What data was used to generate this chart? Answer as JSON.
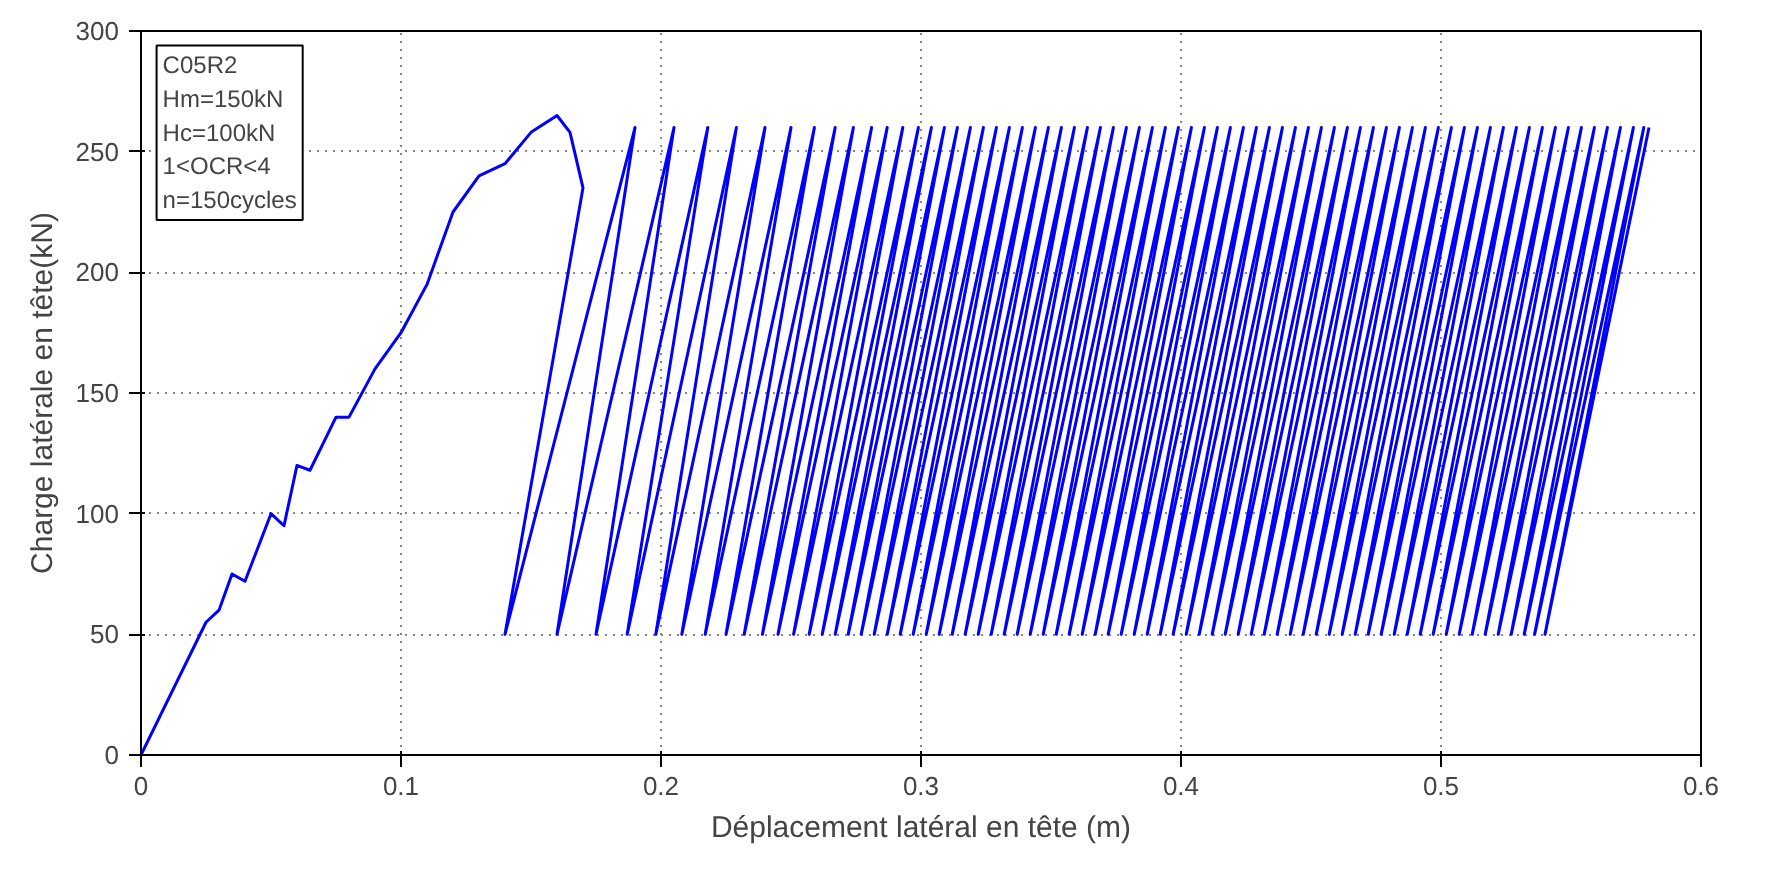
{
  "chart_data": {
    "type": "line",
    "xlabel": "Déplacement latéral en tête (m)",
    "ylabel": "Charge latérale en tête(kN)",
    "annotations": [
      "C05R2",
      "Hm=150kN",
      "Hc=100kN",
      "1<OCR<4",
      "n=150cycles"
    ],
    "xlim": [
      0,
      0.6
    ],
    "xticks": [
      0,
      0.1,
      0.2,
      0.3,
      0.4,
      0.5,
      0.6
    ],
    "ylim": [
      0,
      300
    ],
    "yticks": [
      0,
      50,
      100,
      150,
      200,
      250,
      300
    ],
    "grid": true,
    "line_style": "solid",
    "x": [
      0,
      0.025,
      0.03,
      0.035,
      0.04,
      0.05,
      0.055,
      0.06,
      0.065,
      0.075,
      0.08,
      0.09,
      0.1,
      0.11,
      0.12,
      0.13,
      0.14,
      0.15,
      0.16,
      0.165,
      0.17,
      0.14,
      0.19,
      0.16,
      0.205,
      0.175,
      0.218,
      0.187,
      0.229,
      0.198,
      0.24,
      0.208,
      0.25,
      0.217,
      0.259,
      0.225,
      0.267,
      0.232,
      0.274,
      0.239,
      0.281,
      0.245,
      0.287,
      0.251,
      0.293,
      0.257,
      0.299,
      0.262,
      0.304,
      0.267,
      0.309,
      0.272,
      0.314,
      0.277,
      0.319,
      0.282,
      0.324,
      0.287,
      0.329,
      0.292,
      0.334,
      0.297,
      0.339,
      0.302,
      0.344,
      0.307,
      0.349,
      0.312,
      0.354,
      0.317,
      0.359,
      0.322,
      0.364,
      0.327,
      0.369,
      0.332,
      0.374,
      0.337,
      0.379,
      0.342,
      0.384,
      0.347,
      0.389,
      0.352,
      0.394,
      0.357,
      0.399,
      0.362,
      0.404,
      0.367,
      0.409,
      0.372,
      0.414,
      0.377,
      0.419,
      0.382,
      0.424,
      0.387,
      0.429,
      0.392,
      0.434,
      0.397,
      0.439,
      0.402,
      0.444,
      0.407,
      0.449,
      0.412,
      0.454,
      0.417,
      0.459,
      0.422,
      0.464,
      0.427,
      0.469,
      0.432,
      0.474,
      0.437,
      0.479,
      0.442,
      0.484,
      0.447,
      0.489,
      0.452,
      0.494,
      0.457,
      0.499,
      0.462,
      0.504,
      0.467,
      0.509,
      0.472,
      0.514,
      0.477,
      0.519,
      0.482,
      0.524,
      0.487,
      0.529,
      0.492,
      0.534,
      0.497,
      0.539,
      0.502,
      0.544,
      0.507,
      0.549,
      0.512,
      0.554,
      0.517,
      0.559,
      0.522,
      0.564,
      0.527,
      0.569,
      0.532,
      0.574,
      0.536,
      0.578,
      0.54,
      0.58
    ],
    "series": [
      {
        "color": "#0000ff",
        "values": [
          0,
          55,
          60,
          75,
          72,
          100,
          95,
          120,
          118,
          140,
          140,
          160,
          175,
          195,
          225,
          240,
          245,
          258,
          265,
          258,
          235,
          50,
          260,
          50,
          260,
          50,
          260,
          50,
          260,
          50,
          260,
          50,
          260,
          50,
          260,
          50,
          260,
          50,
          260,
          50,
          260,
          50,
          260,
          50,
          260,
          50,
          260,
          50,
          260,
          50,
          260,
          50,
          260,
          50,
          260,
          50,
          260,
          50,
          260,
          50,
          260,
          50,
          260,
          50,
          260,
          50,
          260,
          50,
          260,
          50,
          260,
          50,
          260,
          50,
          260,
          50,
          260,
          50,
          260,
          50,
          260,
          50,
          260,
          50,
          260,
          50,
          260,
          50,
          260,
          50,
          260,
          50,
          260,
          50,
          260,
          50,
          260,
          50,
          260,
          50,
          260,
          50,
          260,
          50,
          260,
          50,
          260,
          50,
          260,
          50,
          260,
          50,
          260,
          50,
          260,
          50,
          260,
          50,
          260,
          50,
          260,
          50,
          260,
          50,
          260,
          50,
          260,
          50,
          260,
          50,
          260,
          50,
          260,
          50,
          260,
          50,
          260,
          50,
          260,
          50,
          260,
          50,
          260,
          50,
          260,
          50,
          260,
          50,
          260,
          50,
          260,
          50,
          260,
          50,
          260,
          50,
          260,
          50,
          260,
          50,
          260
        ]
      }
    ]
  }
}
